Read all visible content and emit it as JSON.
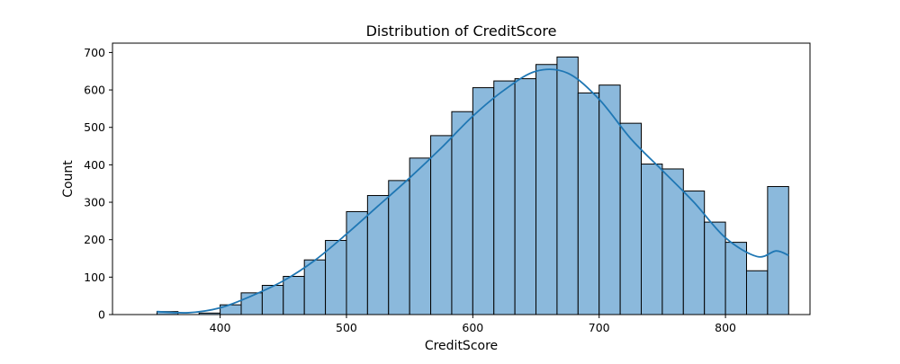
{
  "chart_data": {
    "type": "bar",
    "title": "Distribution of CreditScore",
    "xlabel": "CreditScore",
    "ylabel": "Count",
    "xlim": [
      314.8,
      866.9
    ],
    "ylim": [
      0,
      725
    ],
    "xticks": [
      400,
      500,
      600,
      700,
      800
    ],
    "yticks": [
      0,
      100,
      200,
      300,
      400,
      500,
      600,
      700
    ],
    "grid": false,
    "colors": {
      "bar_fill": "#8bb9dc",
      "bar_edge": "#000000",
      "kde_line": "#1f77b4"
    },
    "bins": {
      "edges": [
        350,
        366.67,
        383.33,
        400,
        416.67,
        433.33,
        450,
        466.67,
        483.33,
        500,
        516.67,
        533.33,
        550,
        566.67,
        583.33,
        600,
        616.67,
        633.33,
        650,
        666.67,
        683.33,
        700,
        716.67,
        733.33,
        750,
        766.67,
        783.33,
        800,
        816.67,
        833.33,
        850
      ],
      "counts": [
        8,
        0,
        4,
        26,
        58,
        78,
        102,
        146,
        198,
        275,
        318,
        358,
        418,
        478,
        542,
        606,
        624,
        630,
        668,
        688,
        592,
        613,
        511,
        402,
        389,
        330,
        247,
        193,
        117,
        342
      ]
    },
    "kde": {
      "x": [
        350,
        375,
        400,
        425,
        450,
        475,
        500,
        525,
        550,
        575,
        600,
        625,
        650,
        675,
        700,
        725,
        750,
        775,
        800,
        825,
        840,
        850
      ],
      "y": [
        8,
        5,
        18,
        50,
        90,
        145,
        215,
        290,
        365,
        445,
        530,
        600,
        650,
        645,
        575,
        470,
        385,
        300,
        205,
        155,
        170,
        158
      ]
    }
  }
}
